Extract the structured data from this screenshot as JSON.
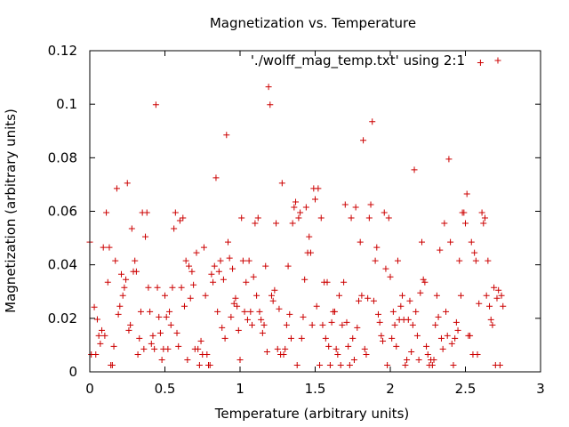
{
  "chart_data": {
    "type": "scatter",
    "title": "Magnetization vs. Temperature",
    "xlabel": "Temperature (arbitrary units)",
    "ylabel": "Magnetization (arbitrary units)",
    "xlim": [
      0,
      3
    ],
    "ylim": [
      0,
      0.12
    ],
    "xticks": [
      "0",
      "0.5",
      "1",
      "1.5",
      "2",
      "2.5",
      "3"
    ],
    "yticks": [
      "0",
      "0.02",
      "0.04",
      "0.06",
      "0.08",
      "0.1",
      "0.12"
    ],
    "grid": false,
    "legend_position": "top-right",
    "marker": "+",
    "series": [
      {
        "name": "'./wolff_mag_temp.txt' using 2:1",
        "color": "#cc0000",
        "points": [
          [
            0.0,
            0.0485
          ],
          [
            0.01,
            0.0065
          ],
          [
            0.03,
            0.0242
          ],
          [
            0.04,
            0.0065
          ],
          [
            0.05,
            0.0196
          ],
          [
            0.06,
            0.0135
          ],
          [
            0.07,
            0.0105
          ],
          [
            0.08,
            0.0155
          ],
          [
            0.09,
            0.0465
          ],
          [
            0.1,
            0.0135
          ],
          [
            0.11,
            0.0595
          ],
          [
            0.12,
            0.0335
          ],
          [
            0.13,
            0.0465
          ],
          [
            0.14,
            0.0025
          ],
          [
            0.15,
            0.0025
          ],
          [
            0.16,
            0.0095
          ],
          [
            0.17,
            0.0415
          ],
          [
            0.18,
            0.0685
          ],
          [
            0.19,
            0.0215
          ],
          [
            0.2,
            0.0245
          ],
          [
            0.21,
            0.0365
          ],
          [
            0.22,
            0.0285
          ],
          [
            0.23,
            0.0315
          ],
          [
            0.24,
            0.0345
          ],
          [
            0.25,
            0.0705
          ],
          [
            0.26,
            0.0155
          ],
          [
            0.27,
            0.0175
          ],
          [
            0.28,
            0.0535
          ],
          [
            0.29,
            0.0375
          ],
          [
            0.3,
            0.0415
          ],
          [
            0.31,
            0.0375
          ],
          [
            0.32,
            0.0065
          ],
          [
            0.33,
            0.0125
          ],
          [
            0.34,
            0.0225
          ],
          [
            0.35,
            0.0595
          ],
          [
            0.36,
            0.0085
          ],
          [
            0.37,
            0.0505
          ],
          [
            0.38,
            0.0595
          ],
          [
            0.39,
            0.0315
          ],
          [
            0.4,
            0.0225
          ],
          [
            0.41,
            0.0105
          ],
          [
            0.42,
            0.0135
          ],
          [
            0.43,
            0.0085
          ],
          [
            0.44,
            0.0998
          ],
          [
            0.45,
            0.0315
          ],
          [
            0.46,
            0.0205
          ],
          [
            0.47,
            0.0145
          ],
          [
            0.48,
            0.0045
          ],
          [
            0.49,
            0.0085
          ],
          [
            0.5,
            0.0285
          ],
          [
            0.51,
            0.0205
          ],
          [
            0.52,
            0.0085
          ],
          [
            0.53,
            0.0225
          ],
          [
            0.54,
            0.0175
          ],
          [
            0.55,
            0.0315
          ],
          [
            0.56,
            0.0535
          ],
          [
            0.57,
            0.0595
          ],
          [
            0.58,
            0.0145
          ],
          [
            0.59,
            0.0095
          ],
          [
            0.6,
            0.0565
          ],
          [
            0.61,
            0.0315
          ],
          [
            0.62,
            0.0575
          ],
          [
            0.63,
            0.0245
          ],
          [
            0.64,
            0.0415
          ],
          [
            0.65,
            0.0045
          ],
          [
            0.66,
            0.0395
          ],
          [
            0.67,
            0.0275
          ],
          [
            0.68,
            0.0375
          ],
          [
            0.69,
            0.0325
          ],
          [
            0.7,
            0.0085
          ],
          [
            0.71,
            0.0445
          ],
          [
            0.72,
            0.0085
          ],
          [
            0.73,
            0.0025
          ],
          [
            0.74,
            0.0115
          ],
          [
            0.75,
            0.0065
          ],
          [
            0.76,
            0.0465
          ],
          [
            0.77,
            0.0285
          ],
          [
            0.78,
            0.0065
          ],
          [
            0.79,
            0.0025
          ],
          [
            0.8,
            0.0025
          ],
          [
            0.81,
            0.0365
          ],
          [
            0.82,
            0.0335
          ],
          [
            0.83,
            0.0395
          ],
          [
            0.84,
            0.0725
          ],
          [
            0.85,
            0.0225
          ],
          [
            0.86,
            0.0375
          ],
          [
            0.87,
            0.0415
          ],
          [
            0.88,
            0.0165
          ],
          [
            0.89,
            0.0345
          ],
          [
            0.9,
            0.0125
          ],
          [
            0.91,
            0.0885
          ],
          [
            0.92,
            0.0485
          ],
          [
            0.93,
            0.0425
          ],
          [
            0.94,
            0.0205
          ],
          [
            0.95,
            0.0385
          ],
          [
            0.96,
            0.0255
          ],
          [
            0.97,
            0.0275
          ],
          [
            0.98,
            0.0245
          ],
          [
            0.99,
            0.0155
          ],
          [
            1.0,
            0.0045
          ],
          [
            1.01,
            0.0575
          ],
          [
            1.02,
            0.0415
          ],
          [
            1.03,
            0.0225
          ],
          [
            1.04,
            0.0335
          ],
          [
            1.05,
            0.0195
          ],
          [
            1.06,
            0.0415
          ],
          [
            1.07,
            0.0225
          ],
          [
            1.08,
            0.0175
          ],
          [
            1.09,
            0.0355
          ],
          [
            1.1,
            0.0555
          ],
          [
            1.11,
            0.0285
          ],
          [
            1.12,
            0.0575
          ],
          [
            1.13,
            0.0225
          ],
          [
            1.14,
            0.0195
          ],
          [
            1.15,
            0.0145
          ],
          [
            1.16,
            0.0175
          ],
          [
            1.17,
            0.0395
          ],
          [
            1.18,
            0.0075
          ],
          [
            1.19,
            0.1065
          ],
          [
            1.2,
            0.0998
          ],
          [
            1.21,
            0.0285
          ],
          [
            1.22,
            0.0265
          ],
          [
            1.23,
            0.0305
          ],
          [
            1.24,
            0.0555
          ],
          [
            1.25,
            0.0085
          ],
          [
            1.26,
            0.0235
          ],
          [
            1.27,
            0.0065
          ],
          [
            1.28,
            0.0705
          ],
          [
            1.29,
            0.0065
          ],
          [
            1.3,
            0.0085
          ],
          [
            1.31,
            0.0175
          ],
          [
            1.32,
            0.0395
          ],
          [
            1.33,
            0.0215
          ],
          [
            1.34,
            0.0125
          ],
          [
            1.35,
            0.0555
          ],
          [
            1.36,
            0.0615
          ],
          [
            1.37,
            0.0635
          ],
          [
            1.38,
            0.0025
          ],
          [
            1.39,
            0.0575
          ],
          [
            1.4,
            0.0595
          ],
          [
            1.41,
            0.0125
          ],
          [
            1.42,
            0.0205
          ],
          [
            1.43,
            0.0345
          ],
          [
            1.44,
            0.0615
          ],
          [
            1.45,
            0.0445
          ],
          [
            1.46,
            0.0505
          ],
          [
            1.47,
            0.0445
          ],
          [
            1.48,
            0.0175
          ],
          [
            1.49,
            0.0685
          ],
          [
            1.5,
            0.0645
          ],
          [
            1.51,
            0.0245
          ],
          [
            1.52,
            0.0685
          ],
          [
            1.53,
            0.0025
          ],
          [
            1.54,
            0.0575
          ],
          [
            1.55,
            0.0175
          ],
          [
            1.56,
            0.0335
          ],
          [
            1.57,
            0.0125
          ],
          [
            1.58,
            0.0335
          ],
          [
            1.59,
            0.0095
          ],
          [
            1.6,
            0.0025
          ],
          [
            1.61,
            0.0185
          ],
          [
            1.62,
            0.0225
          ],
          [
            1.63,
            0.0225
          ],
          [
            1.64,
            0.0085
          ],
          [
            1.65,
            0.0065
          ],
          [
            1.66,
            0.0285
          ],
          [
            1.67,
            0.0025
          ],
          [
            1.68,
            0.0175
          ],
          [
            1.69,
            0.0335
          ],
          [
            1.7,
            0.0625
          ],
          [
            1.71,
            0.0185
          ],
          [
            1.72,
            0.0095
          ],
          [
            1.73,
            0.0025
          ],
          [
            1.74,
            0.0575
          ],
          [
            1.75,
            0.0125
          ],
          [
            1.76,
            0.0045
          ],
          [
            1.77,
            0.0615
          ],
          [
            1.78,
            0.0165
          ],
          [
            1.79,
            0.0265
          ],
          [
            1.8,
            0.0485
          ],
          [
            1.81,
            0.0285
          ],
          [
            1.82,
            0.0865
          ],
          [
            1.83,
            0.0085
          ],
          [
            1.84,
            0.0065
          ],
          [
            1.85,
            0.0275
          ],
          [
            1.86,
            0.0575
          ],
          [
            1.87,
            0.0625
          ],
          [
            1.88,
            0.0935
          ],
          [
            1.89,
            0.0265
          ],
          [
            1.9,
            0.0415
          ],
          [
            1.91,
            0.0465
          ],
          [
            1.92,
            0.0215
          ],
          [
            1.93,
            0.0185
          ],
          [
            1.94,
            0.0135
          ],
          [
            1.95,
            0.0115
          ],
          [
            1.96,
            0.0595
          ],
          [
            1.97,
            0.0385
          ],
          [
            1.98,
            0.0025
          ],
          [
            1.99,
            0.0575
          ],
          [
            2.0,
            0.0355
          ],
          [
            2.01,
            0.0125
          ],
          [
            2.02,
            0.0225
          ],
          [
            2.03,
            0.0175
          ],
          [
            2.04,
            0.0095
          ],
          [
            2.05,
            0.0415
          ],
          [
            2.06,
            0.0195
          ],
          [
            2.07,
            0.0245
          ],
          [
            2.08,
            0.0285
          ],
          [
            2.09,
            0.0195
          ],
          [
            2.1,
            0.0025
          ],
          [
            2.11,
            0.0045
          ],
          [
            2.12,
            0.0195
          ],
          [
            2.13,
            0.0265
          ],
          [
            2.14,
            0.0075
          ],
          [
            2.15,
            0.0175
          ],
          [
            2.16,
            0.0755
          ],
          [
            2.17,
            0.0225
          ],
          [
            2.18,
            0.0135
          ],
          [
            2.19,
            0.0045
          ],
          [
            2.2,
            0.0295
          ],
          [
            2.21,
            0.0485
          ],
          [
            2.22,
            0.0345
          ],
          [
            2.23,
            0.0335
          ],
          [
            2.24,
            0.0095
          ],
          [
            2.25,
            0.0065
          ],
          [
            2.26,
            0.0025
          ],
          [
            2.27,
            0.0045
          ],
          [
            2.28,
            0.0025
          ],
          [
            2.29,
            0.0045
          ],
          [
            2.3,
            0.0175
          ],
          [
            2.31,
            0.0285
          ],
          [
            2.32,
            0.0205
          ],
          [
            2.33,
            0.0455
          ],
          [
            2.34,
            0.0125
          ],
          [
            2.35,
            0.0085
          ],
          [
            2.36,
            0.0555
          ],
          [
            2.37,
            0.0225
          ],
          [
            2.38,
            0.0135
          ],
          [
            2.39,
            0.0795
          ],
          [
            2.4,
            0.0485
          ],
          [
            2.41,
            0.0105
          ],
          [
            2.42,
            0.0025
          ],
          [
            2.43,
            0.0125
          ],
          [
            2.44,
            0.0185
          ],
          [
            2.45,
            0.0155
          ],
          [
            2.46,
            0.0415
          ],
          [
            2.47,
            0.0285
          ],
          [
            2.48,
            0.0595
          ],
          [
            2.49,
            0.0595
          ],
          [
            2.5,
            0.0555
          ],
          [
            2.51,
            0.0665
          ],
          [
            2.52,
            0.0135
          ],
          [
            2.53,
            0.0135
          ],
          [
            2.54,
            0.0485
          ],
          [
            2.55,
            0.0065
          ],
          [
            2.56,
            0.0445
          ],
          [
            2.57,
            0.0415
          ],
          [
            2.58,
            0.0065
          ],
          [
            2.59,
            0.0255
          ],
          [
            2.6,
            0.1155
          ],
          [
            2.61,
            0.0595
          ],
          [
            2.62,
            0.0555
          ],
          [
            2.63,
            0.0575
          ],
          [
            2.64,
            0.0285
          ],
          [
            2.65,
            0.0415
          ],
          [
            2.66,
            0.0245
          ],
          [
            2.67,
            0.0195
          ],
          [
            2.68,
            0.0175
          ],
          [
            2.69,
            0.0315
          ],
          [
            2.7,
            0.0025
          ],
          [
            2.71,
            0.0275
          ],
          [
            2.72,
            0.0305
          ],
          [
            2.73,
            0.0025
          ],
          [
            2.74,
            0.0285
          ],
          [
            2.75,
            0.0245
          ]
        ]
      }
    ]
  }
}
